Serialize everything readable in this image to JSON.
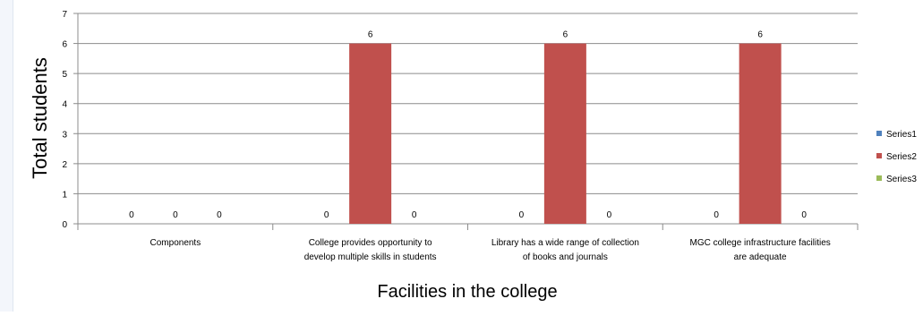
{
  "chart_data": {
    "type": "bar",
    "title": "",
    "xlabel": "Facilities in the college",
    "ylabel": "Total students",
    "ylim": [
      0,
      7
    ],
    "yticks": [
      0,
      1,
      2,
      3,
      4,
      5,
      6,
      7
    ],
    "grid": true,
    "legend": "right",
    "categories": [
      [
        "Components"
      ],
      [
        "College provides opportunity to",
        "develop multiple skills in students"
      ],
      [
        "Library has a wide  range of collection",
        "of books and journals"
      ],
      [
        "MGC college infrastructure  facilities",
        "are adequate"
      ]
    ],
    "series": [
      {
        "name": "Series1",
        "color": "#4f81bd",
        "values": [
          0,
          0,
          0,
          0
        ]
      },
      {
        "name": "Series2",
        "color": "#c0504d",
        "values": [
          0,
          6,
          6,
          6
        ]
      },
      {
        "name": "Series3",
        "color": "#9bbb59",
        "values": [
          0,
          0,
          0,
          0
        ]
      }
    ],
    "data_labels": true
  }
}
